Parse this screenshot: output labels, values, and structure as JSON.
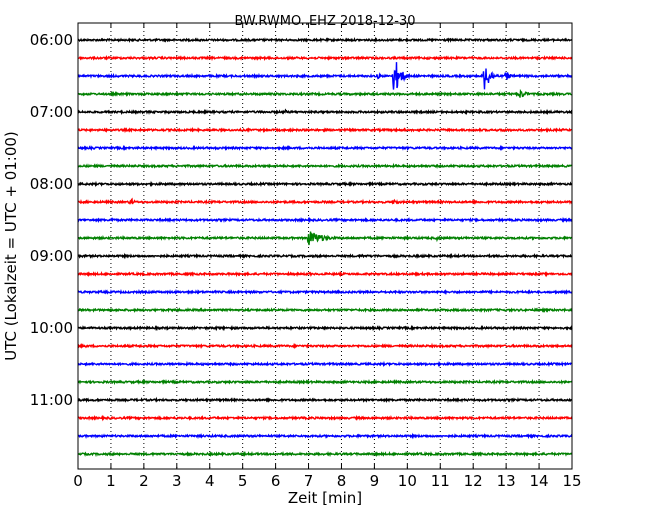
{
  "chart_data": {
    "type": "line",
    "title": "BW.RWMO..EHZ 2018-12-30",
    "xlabel": "Zeit  [min]",
    "ylabel": "UTC (Lokalzeit = UTC + 01:00)",
    "xlim": [
      0,
      15
    ],
    "x_ticks": [
      "0",
      "1",
      "2",
      "3",
      "4",
      "5",
      "6",
      "7",
      "8",
      "9",
      "10",
      "11",
      "12",
      "13",
      "14",
      "15"
    ],
    "grid": "vertical-dotted",
    "hour_labels": [
      "06:00",
      "07:00",
      "08:00",
      "09:00",
      "10:00",
      "11:00"
    ],
    "trace_colors": [
      "#000000",
      "#ff0000",
      "#0000ff",
      "#008000"
    ],
    "traces": [
      {
        "start": "06:00",
        "color": "#000000",
        "events": []
      },
      {
        "start": "06:15",
        "color": "#ff0000",
        "events": []
      },
      {
        "start": "06:30",
        "color": "#0000ff",
        "events": [
          {
            "t": 9.1,
            "amp": 3,
            "dur": 0.3
          },
          {
            "t": 9.6,
            "amp": 22,
            "dur": 0.5
          },
          {
            "t": 12.35,
            "amp": 16,
            "dur": 0.5
          },
          {
            "t": 13.0,
            "amp": 5,
            "dur": 0.4
          }
        ]
      },
      {
        "start": "06:45",
        "color": "#008000",
        "events": [
          {
            "t": 13.4,
            "amp": 5,
            "dur": 0.6
          }
        ]
      },
      {
        "start": "07:00",
        "color": "#000000",
        "events": [
          {
            "t": 6.3,
            "amp": 2,
            "dur": 0.3
          }
        ]
      },
      {
        "start": "07:15",
        "color": "#ff0000",
        "events": [
          {
            "t": 9.9,
            "amp": 2,
            "dur": 0.2
          },
          {
            "t": 12.9,
            "amp": 2,
            "dur": 0.3
          }
        ]
      },
      {
        "start": "07:30",
        "color": "#0000ff",
        "events": [
          {
            "t": 7.0,
            "amp": 2,
            "dur": 0.2
          }
        ]
      },
      {
        "start": "07:45",
        "color": "#008000",
        "events": []
      },
      {
        "start": "08:00",
        "color": "#000000",
        "events": [
          {
            "t": 8.0,
            "amp": 2,
            "dur": 0.3
          }
        ]
      },
      {
        "start": "08:15",
        "color": "#ff0000",
        "events": [
          {
            "t": 1.6,
            "amp": 5,
            "dur": 0.25
          },
          {
            "t": 9.6,
            "amp": 3,
            "dur": 0.4
          }
        ]
      },
      {
        "start": "08:30",
        "color": "#0000ff",
        "events": [
          {
            "t": 1.0,
            "amp": 2,
            "dur": 0.5
          }
        ]
      },
      {
        "start": "08:45",
        "color": "#008000",
        "events": [
          {
            "t": 7.0,
            "amp": 8,
            "dur": 1.2
          },
          {
            "t": 10.9,
            "amp": 2,
            "dur": 0.4
          }
        ]
      },
      {
        "start": "09:00",
        "color": "#000000",
        "events": [
          {
            "t": 8.6,
            "amp": 2,
            "dur": 0.3
          },
          {
            "t": 9.0,
            "amp": 2,
            "dur": 0.3
          }
        ]
      },
      {
        "start": "09:15",
        "color": "#ff0000",
        "events": [
          {
            "t": 7.05,
            "amp": 2,
            "dur": 0.15
          }
        ]
      },
      {
        "start": "09:30",
        "color": "#0000ff",
        "events": []
      },
      {
        "start": "09:45",
        "color": "#008000",
        "events": []
      },
      {
        "start": "10:00",
        "color": "#000000",
        "events": [
          {
            "t": 4.2,
            "amp": 2,
            "dur": 0.3
          }
        ]
      },
      {
        "start": "10:15",
        "color": "#ff0000",
        "events": [
          {
            "t": 0.25,
            "amp": 2,
            "dur": 0.2
          }
        ]
      },
      {
        "start": "10:30",
        "color": "#0000ff",
        "events": []
      },
      {
        "start": "10:45",
        "color": "#008000",
        "events": []
      },
      {
        "start": "11:00",
        "color": "#000000",
        "events": [
          {
            "t": 2.0,
            "amp": 1.5,
            "dur": 0.3
          }
        ]
      },
      {
        "start": "11:15",
        "color": "#ff0000",
        "events": []
      },
      {
        "start": "11:30",
        "color": "#0000ff",
        "events": []
      },
      {
        "start": "11:45",
        "color": "#008000",
        "events": []
      }
    ]
  }
}
